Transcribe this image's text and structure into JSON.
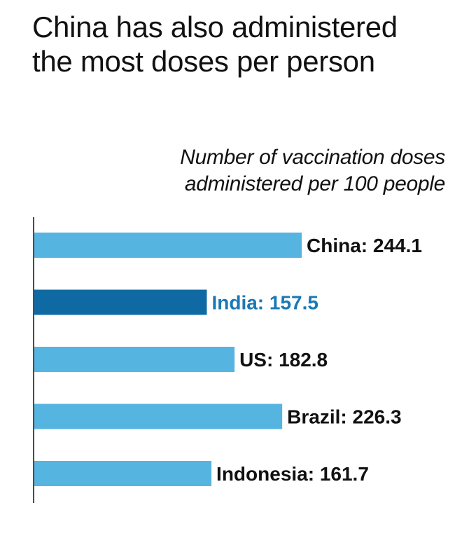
{
  "title": "China has also administered the most doses per person",
  "subtitle": "Number of vaccination doses administered per 100 people",
  "colors": {
    "bar": "#56b4e0",
    "highlight_bar": "#0f6aa3",
    "label": "#111111",
    "highlight_label": "#1a78b5",
    "axis": "#111111"
  },
  "chart_data": {
    "type": "bar",
    "orientation": "horizontal",
    "categories": [
      "China",
      "India",
      "US",
      "Brazil",
      "Indonesia"
    ],
    "values": [
      244.1,
      157.5,
      182.8,
      226.3,
      161.7
    ],
    "labels": [
      "China: 244.1",
      "India: 157.5",
      "US: 182.8",
      "Brazil: 226.3",
      "Indonesia: 161.7"
    ],
    "highlight": "India",
    "title": "China has also administered the most doses per person",
    "subtitle": "Number of vaccination doses administered per 100 people",
    "xlabel": "",
    "ylabel": "",
    "grid": false
  }
}
